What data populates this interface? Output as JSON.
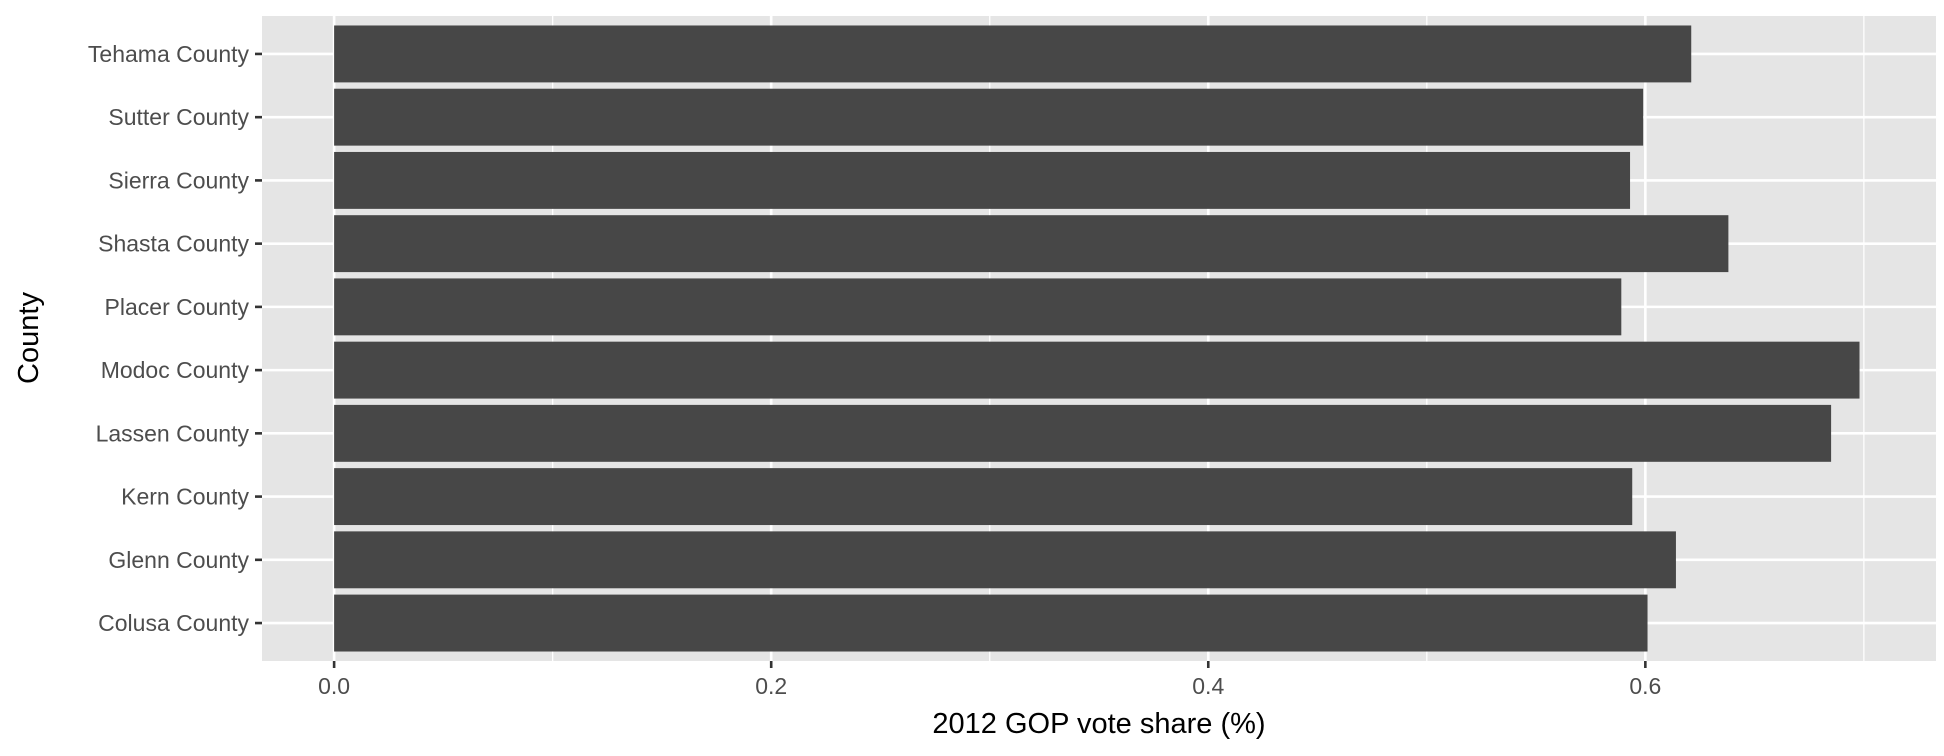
{
  "chart_data": {
    "type": "bar",
    "orientation": "horizontal",
    "categories": [
      "Colusa County",
      "Glenn County",
      "Kern County",
      "Lassen County",
      "Modoc County",
      "Placer County",
      "Shasta County",
      "Sierra County",
      "Sutter County",
      "Tehama County"
    ],
    "values": [
      0.601,
      0.614,
      0.594,
      0.685,
      0.698,
      0.589,
      0.638,
      0.593,
      0.599,
      0.621
    ],
    "title": "",
    "xlabel": "2012 GOP vote share (%)",
    "ylabel": "County",
    "xlim": [
      -0.033,
      0.733
    ],
    "x_ticks": [
      0.0,
      0.2,
      0.4,
      0.6
    ],
    "x_tick_labels": [
      "0.0",
      "0.2",
      "0.4",
      "0.6"
    ],
    "grid": true,
    "legend": "none"
  },
  "colors": {
    "panel_background": "#e5e5e5",
    "grid": "#ffffff",
    "bar": "#474747",
    "tick_text": "#4d4d4d",
    "axis_title": "#000000"
  }
}
